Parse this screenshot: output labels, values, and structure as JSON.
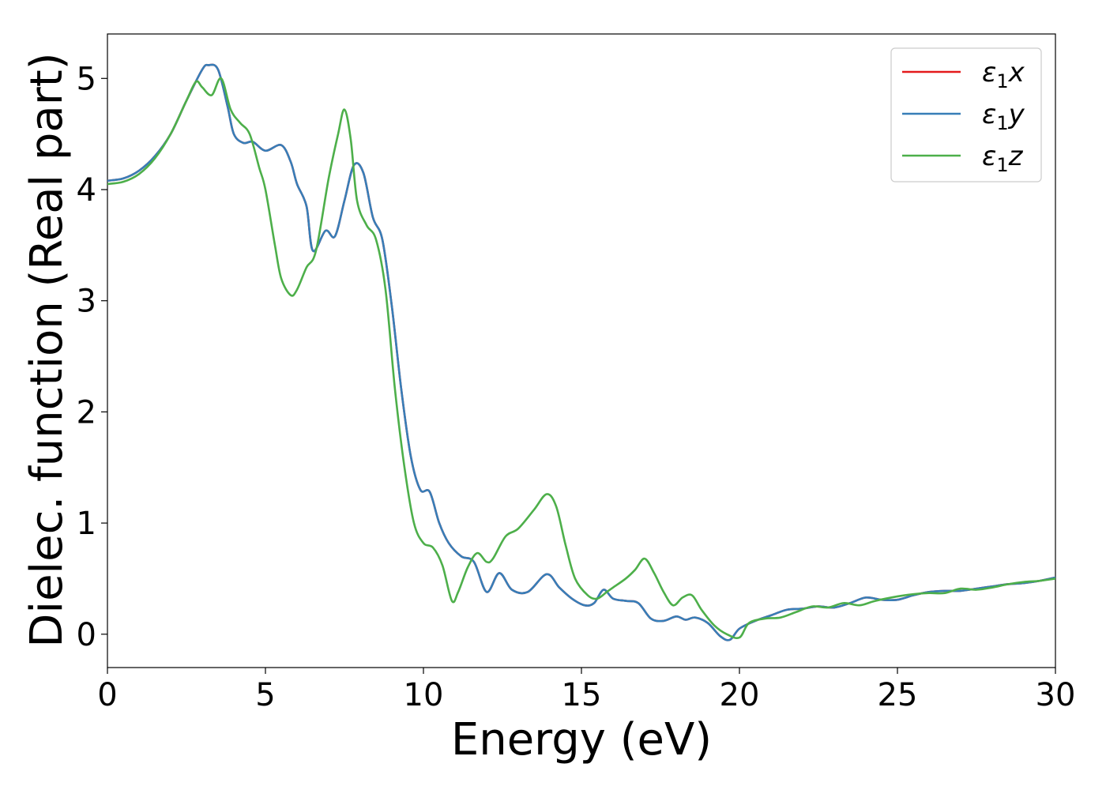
{
  "chart_data": {
    "type": "line",
    "xlabel": "Energy (eV)",
    "ylabel": "Dielec. function (Real part)",
    "xlim": [
      0,
      30
    ],
    "ylim": [
      -0.3,
      5.4
    ],
    "xticks": [
      0,
      5,
      10,
      15,
      20,
      25,
      30
    ],
    "yticks": [
      0,
      1,
      2,
      3,
      4,
      5
    ],
    "grid": false,
    "legend_position": "top-right",
    "series": [
      {
        "name": "ε1x",
        "label_main": "ε",
        "label_sub": "1",
        "label_tail": "x",
        "color": "#e41a1c",
        "x": [
          0,
          0.5,
          1.0,
          1.5,
          2.0,
          2.5,
          3.0,
          3.2,
          3.5,
          3.8,
          4.0,
          4.3,
          4.6,
          5.0,
          5.5,
          5.8,
          6.0,
          6.3,
          6.5,
          6.9,
          7.2,
          7.5,
          7.8,
          8.1,
          8.4,
          8.7,
          9.0,
          9.3,
          9.6,
          9.9,
          10.2,
          10.5,
          10.8,
          11.2,
          11.6,
          12.0,
          12.4,
          12.8,
          13.3,
          13.9,
          14.3,
          14.7,
          15.1,
          15.4,
          15.7,
          16.0,
          16.4,
          16.8,
          17.2,
          17.6,
          18.0,
          18.3,
          18.6,
          19.0,
          19.4,
          19.7,
          20.0,
          20.5,
          21.0,
          21.5,
          22.0,
          22.5,
          23.0,
          23.5,
          24.0,
          24.5,
          25.0,
          25.5,
          26.0,
          26.5,
          27.0,
          27.5,
          28.0,
          28.5,
          29.0,
          29.5,
          30.0
        ],
        "y": [
          4.08,
          4.1,
          4.17,
          4.3,
          4.5,
          4.8,
          5.08,
          5.12,
          5.08,
          4.75,
          4.5,
          4.42,
          4.43,
          4.35,
          4.4,
          4.25,
          4.05,
          3.85,
          3.45,
          3.63,
          3.58,
          3.9,
          4.22,
          4.15,
          3.75,
          3.55,
          2.95,
          2.2,
          1.6,
          1.3,
          1.28,
          1.0,
          0.82,
          0.7,
          0.65,
          0.38,
          0.55,
          0.4,
          0.38,
          0.54,
          0.42,
          0.32,
          0.26,
          0.28,
          0.4,
          0.32,
          0.3,
          0.28,
          0.14,
          0.12,
          0.16,
          0.13,
          0.15,
          0.1,
          -0.02,
          -0.05,
          0.05,
          0.12,
          0.17,
          0.22,
          0.23,
          0.25,
          0.24,
          0.28,
          0.33,
          0.31,
          0.31,
          0.35,
          0.38,
          0.39,
          0.39,
          0.41,
          0.43,
          0.45,
          0.46,
          0.48,
          0.51
        ]
      },
      {
        "name": "ε1y",
        "label_main": "ε",
        "label_sub": "1",
        "label_tail": "y",
        "color": "#377eb8",
        "x": [
          0,
          0.5,
          1.0,
          1.5,
          2.0,
          2.5,
          3.0,
          3.2,
          3.5,
          3.8,
          4.0,
          4.3,
          4.6,
          5.0,
          5.5,
          5.8,
          6.0,
          6.3,
          6.5,
          6.9,
          7.2,
          7.5,
          7.8,
          8.1,
          8.4,
          8.7,
          9.0,
          9.3,
          9.6,
          9.9,
          10.2,
          10.5,
          10.8,
          11.2,
          11.6,
          12.0,
          12.4,
          12.8,
          13.3,
          13.9,
          14.3,
          14.7,
          15.1,
          15.4,
          15.7,
          16.0,
          16.4,
          16.8,
          17.2,
          17.6,
          18.0,
          18.3,
          18.6,
          19.0,
          19.4,
          19.7,
          20.0,
          20.5,
          21.0,
          21.5,
          22.0,
          22.5,
          23.0,
          23.5,
          24.0,
          24.5,
          25.0,
          25.5,
          26.0,
          26.5,
          27.0,
          27.5,
          28.0,
          28.5,
          29.0,
          29.5,
          30.0
        ],
        "y": [
          4.08,
          4.1,
          4.17,
          4.3,
          4.5,
          4.8,
          5.08,
          5.12,
          5.08,
          4.75,
          4.5,
          4.42,
          4.43,
          4.35,
          4.4,
          4.25,
          4.05,
          3.85,
          3.45,
          3.63,
          3.58,
          3.9,
          4.22,
          4.15,
          3.75,
          3.55,
          2.95,
          2.2,
          1.6,
          1.3,
          1.28,
          1.0,
          0.82,
          0.7,
          0.65,
          0.38,
          0.55,
          0.4,
          0.38,
          0.54,
          0.42,
          0.32,
          0.26,
          0.28,
          0.4,
          0.32,
          0.3,
          0.28,
          0.14,
          0.12,
          0.16,
          0.13,
          0.15,
          0.1,
          -0.02,
          -0.05,
          0.05,
          0.12,
          0.17,
          0.22,
          0.23,
          0.25,
          0.24,
          0.28,
          0.33,
          0.31,
          0.31,
          0.35,
          0.38,
          0.39,
          0.39,
          0.41,
          0.43,
          0.45,
          0.46,
          0.48,
          0.51
        ]
      },
      {
        "name": "ε1z",
        "label_main": "ε",
        "label_sub": "1",
        "label_tail": "z",
        "color": "#4daf4a",
        "x": [
          0,
          0.5,
          1.0,
          1.5,
          2.0,
          2.5,
          2.8,
          3.0,
          3.3,
          3.6,
          3.9,
          4.2,
          4.5,
          4.8,
          5.0,
          5.3,
          5.5,
          5.8,
          6.0,
          6.3,
          6.6,
          7.0,
          7.3,
          7.5,
          7.7,
          7.9,
          8.2,
          8.5,
          8.8,
          9.1,
          9.4,
          9.7,
          10.0,
          10.3,
          10.6,
          10.9,
          11.1,
          11.4,
          11.7,
          12.0,
          12.2,
          12.6,
          13.0,
          13.5,
          13.9,
          14.2,
          14.5,
          14.8,
          15.2,
          15.5,
          15.8,
          16.0,
          16.4,
          16.7,
          17.0,
          17.3,
          17.6,
          17.9,
          18.2,
          18.5,
          18.8,
          19.2,
          19.6,
          20.0,
          20.3,
          20.8,
          21.3,
          21.8,
          22.3,
          22.8,
          23.3,
          23.8,
          24.3,
          25.0,
          25.5,
          26.0,
          26.5,
          27.0,
          27.5,
          28.0,
          28.5,
          29.0,
          29.5,
          30.0
        ],
        "y": [
          4.05,
          4.07,
          4.14,
          4.28,
          4.5,
          4.8,
          4.97,
          4.92,
          4.85,
          5.0,
          4.72,
          4.6,
          4.5,
          4.2,
          4.0,
          3.5,
          3.2,
          3.05,
          3.1,
          3.3,
          3.45,
          4.1,
          4.5,
          4.72,
          4.45,
          3.9,
          3.68,
          3.55,
          3.1,
          2.2,
          1.5,
          1.0,
          0.82,
          0.78,
          0.62,
          0.3,
          0.38,
          0.6,
          0.73,
          0.65,
          0.68,
          0.88,
          0.95,
          1.12,
          1.26,
          1.15,
          0.8,
          0.5,
          0.35,
          0.32,
          0.38,
          0.42,
          0.5,
          0.58,
          0.68,
          0.55,
          0.38,
          0.26,
          0.33,
          0.35,
          0.22,
          0.08,
          0.0,
          -0.03,
          0.1,
          0.14,
          0.15,
          0.2,
          0.25,
          0.24,
          0.28,
          0.26,
          0.3,
          0.34,
          0.36,
          0.37,
          0.37,
          0.41,
          0.4,
          0.42,
          0.45,
          0.47,
          0.48,
          0.5
        ]
      }
    ]
  }
}
